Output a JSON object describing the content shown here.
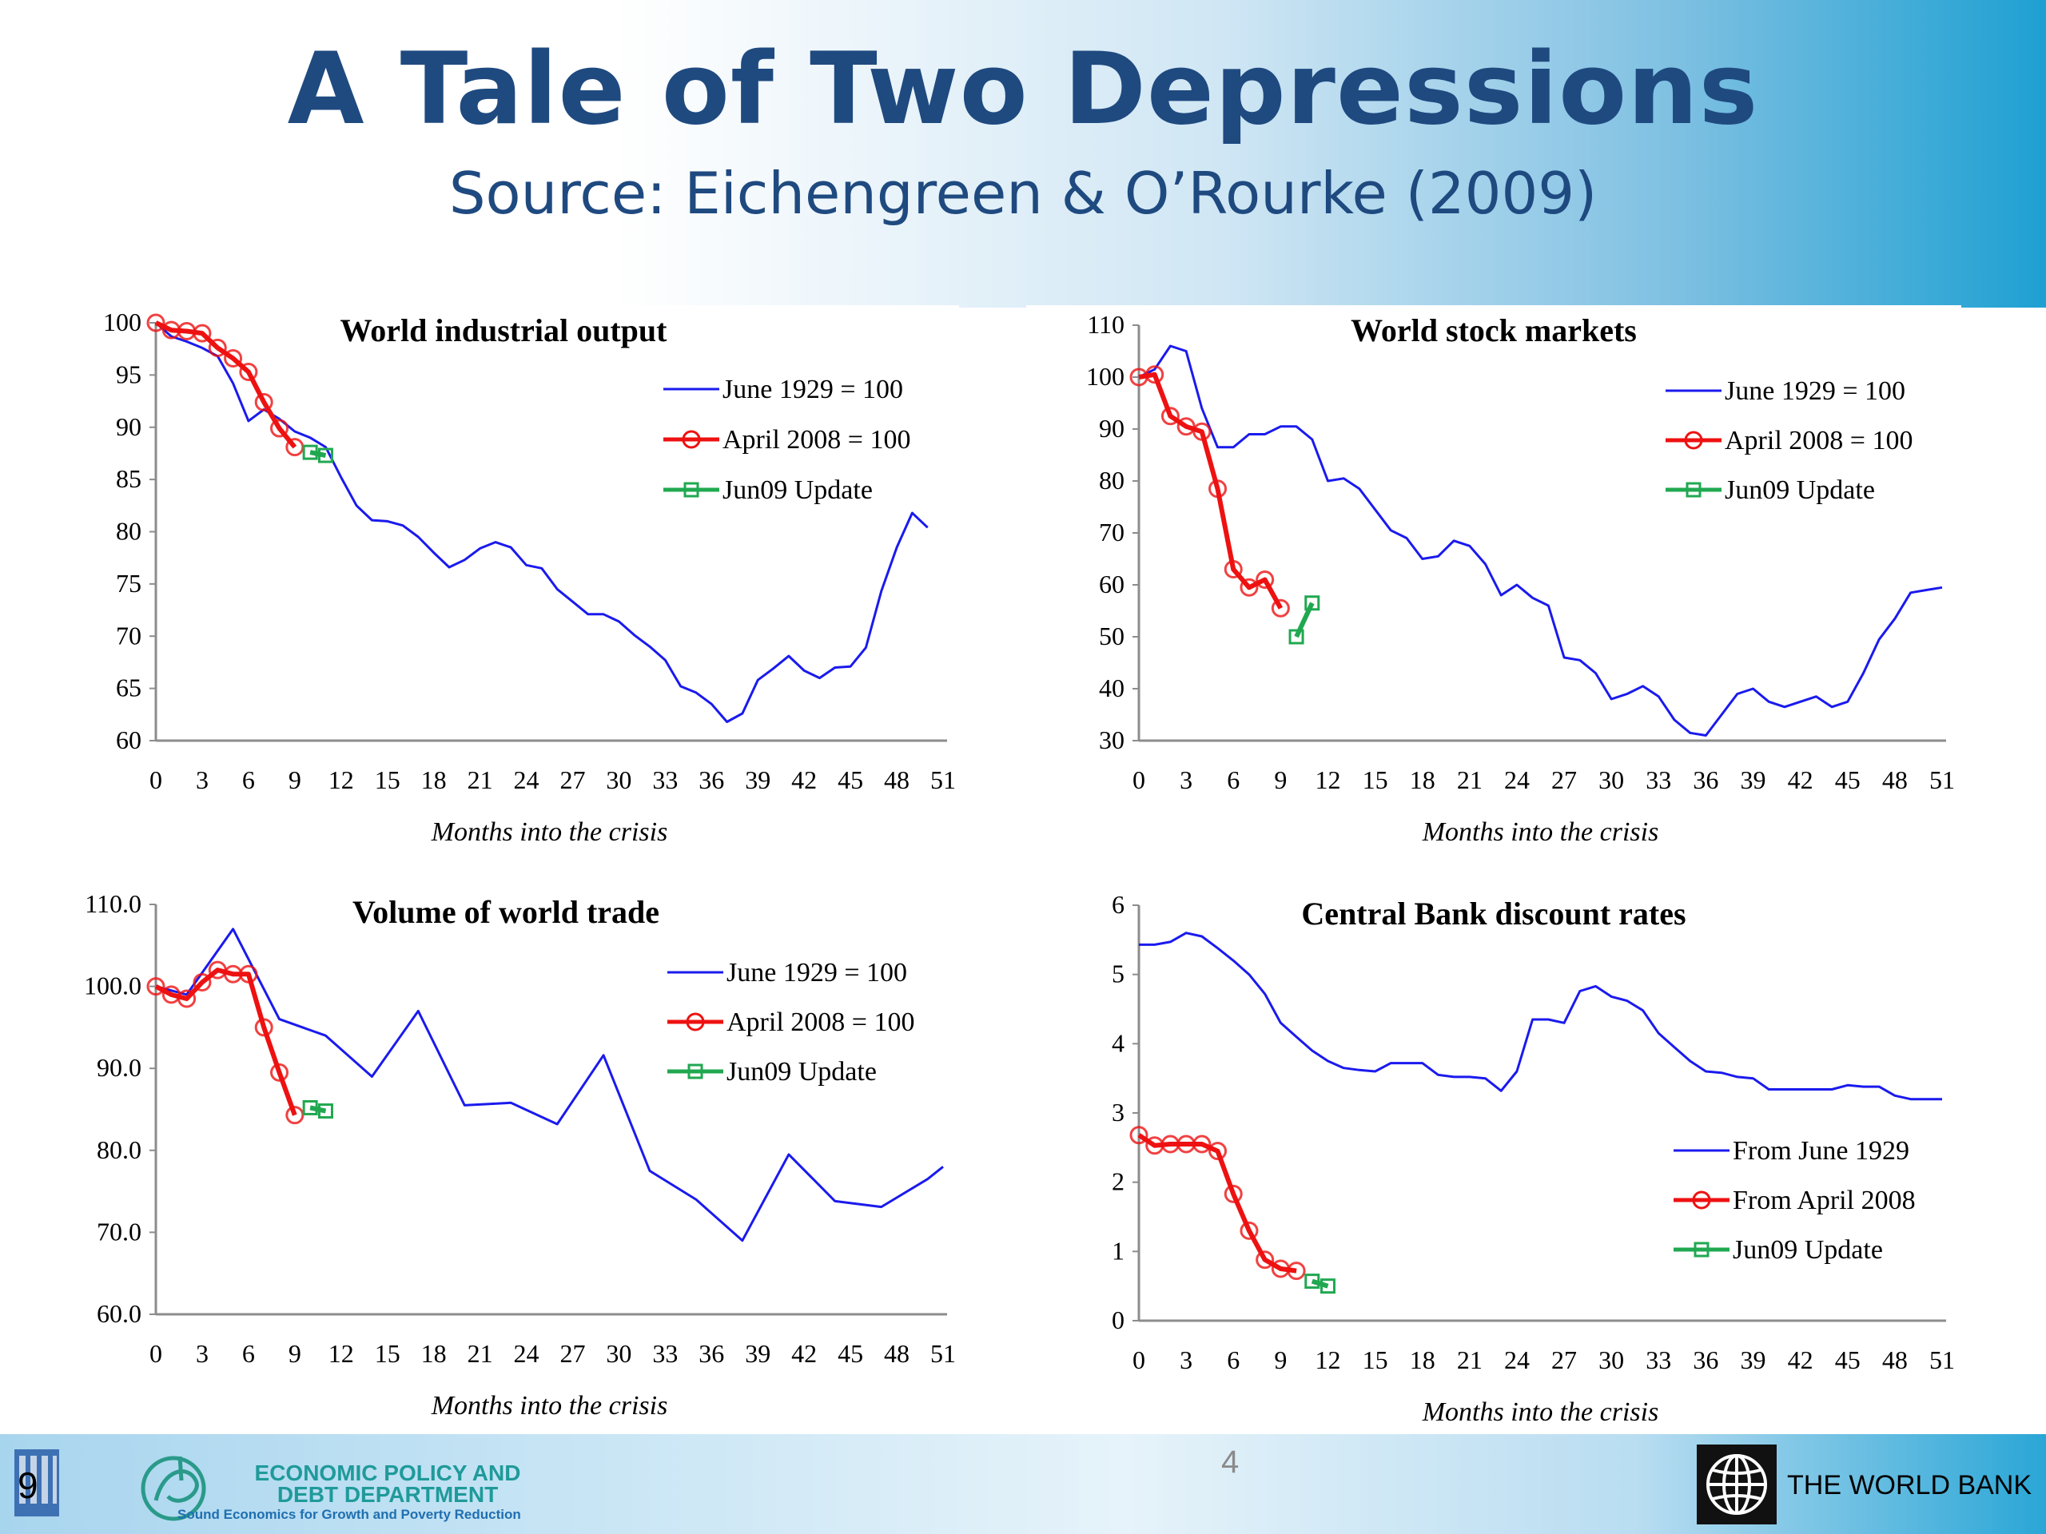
{
  "slide": {
    "title": "A Tale of Two Depressions",
    "subtitle": "Source: Eichengreen & O’Rourke (2009)"
  },
  "footer": {
    "slide_number": "9",
    "org_name": "ECONOMIC POLICY AND DEBT DEPARTMENT",
    "tagline": "Sound Economics for Growth and Poverty Reduction",
    "page_number": "4",
    "world_bank": "THE WORLD BANK"
  },
  "colors": {
    "series_1929": "#1a1aee",
    "series_2008": "#ee1111",
    "series_update": "#20a850",
    "title_blue": "#1f4a80"
  },
  "chart_data": [
    {
      "type": "line",
      "title": "World industrial output",
      "xlabel": "Months into the crisis",
      "ylabel": "",
      "xlim": [
        0,
        51
      ],
      "ylim": [
        60,
        100
      ],
      "x_ticks": [
        0,
        3,
        6,
        9,
        12,
        15,
        18,
        21,
        24,
        27,
        30,
        33,
        36,
        39,
        42,
        45,
        48,
        51
      ],
      "y_ticks": [
        60,
        65,
        70,
        75,
        80,
        85,
        90,
        95,
        100
      ],
      "y_tick_labels": [
        "60",
        "65",
        "70",
        "75",
        "80",
        "85",
        "90",
        "95",
        "100"
      ],
      "grid": false,
      "legend_position": "top-right",
      "series": [
        {
          "name": "June 1929 = 100",
          "color": "#1a1aee",
          "marker": "none",
          "x": [
            0,
            1,
            2,
            3,
            4,
            5,
            6,
            7,
            8,
            9,
            10,
            11,
            12,
            13,
            14,
            15,
            16,
            17,
            18,
            19,
            20,
            21,
            22,
            23,
            24,
            25,
            26,
            27,
            28,
            29,
            30,
            31,
            32,
            33,
            34,
            35,
            36,
            37,
            38,
            39,
            40,
            41,
            42,
            43,
            44,
            45,
            46,
            47,
            48,
            49,
            50
          ],
          "y": [
            100,
            98.7,
            98.2,
            97.6,
            96.8,
            94.2,
            90.6,
            91.7,
            90.8,
            89.6,
            89.0,
            88.1,
            85.2,
            82.5,
            81.1,
            81.0,
            80.6,
            79.5,
            78.0,
            76.6,
            77.3,
            78.4,
            79.0,
            78.5,
            76.8,
            76.5,
            74.5,
            73.3,
            72.1,
            72.1,
            71.4,
            70.1,
            69.0,
            67.7,
            65.2,
            64.6,
            63.5,
            61.8,
            62.6,
            65.8,
            66.9,
            68.1,
            66.7,
            66.0,
            67.0,
            67.1,
            68.9,
            74.3,
            78.5,
            81.8,
            80.4
          ]
        },
        {
          "name": "April 2008 = 100",
          "color": "#ee1111",
          "marker": "circle",
          "x": [
            0,
            1,
            2,
            3,
            4,
            5,
            6,
            7,
            8,
            9
          ],
          "y": [
            100,
            99.3,
            99.2,
            99.0,
            97.6,
            96.6,
            95.3,
            92.4,
            89.9,
            88.1
          ]
        },
        {
          "name": "Jun09 Update",
          "color": "#20a850",
          "marker": "square",
          "x": [
            10,
            11
          ],
          "y": [
            87.6,
            87.3
          ]
        }
      ]
    },
    {
      "type": "line",
      "title": "World stock markets",
      "xlabel": "Months into the crisis",
      "ylabel": "",
      "xlim": [
        0,
        51
      ],
      "ylim": [
        30,
        110
      ],
      "x_ticks": [
        0,
        3,
        6,
        9,
        12,
        15,
        18,
        21,
        24,
        27,
        30,
        33,
        36,
        39,
        42,
        45,
        48,
        51
      ],
      "y_ticks": [
        30,
        40,
        50,
        60,
        70,
        80,
        90,
        100,
        110
      ],
      "y_tick_labels": [
        "30",
        "40",
        "50",
        "60",
        "70",
        "80",
        "90",
        "100",
        "110"
      ],
      "grid": false,
      "legend_position": "top-right",
      "series": [
        {
          "name": "June 1929 = 100",
          "color": "#1a1aee",
          "marker": "none",
          "x": [
            0,
            1,
            2,
            3,
            4,
            5,
            6,
            7,
            8,
            9,
            10,
            11,
            12,
            13,
            14,
            15,
            16,
            17,
            18,
            19,
            20,
            21,
            22,
            23,
            24,
            25,
            26,
            27,
            28,
            29,
            30,
            31,
            32,
            33,
            34,
            35,
            36,
            37,
            38,
            39,
            40,
            41,
            42,
            43,
            44,
            45,
            46,
            47,
            48,
            49,
            50,
            51
          ],
          "y": [
            100,
            101.5,
            106,
            105,
            94,
            86.5,
            86.5,
            89,
            89,
            90.5,
            90.5,
            88,
            80,
            80.5,
            78.5,
            74.5,
            70.5,
            69,
            65,
            65.5,
            68.5,
            67.5,
            64,
            58,
            60,
            57.5,
            56,
            46,
            45.5,
            43,
            38,
            39,
            40.5,
            38.5,
            34,
            31.5,
            31,
            35,
            39,
            40,
            37.5,
            36.5,
            37.5,
            38.5,
            36.5,
            37.5,
            43,
            49.5,
            53.5,
            58.5,
            59,
            59.5
          ]
        },
        {
          "name": "April 2008 = 100",
          "color": "#ee1111",
          "marker": "circle",
          "x": [
            0,
            1,
            2,
            3,
            4,
            5,
            6,
            7,
            8,
            9
          ],
          "y": [
            100,
            100.5,
            92.5,
            90.5,
            89.5,
            78.5,
            63,
            59.5,
            61,
            55.5
          ]
        },
        {
          "name": "Jun09 Update",
          "color": "#20a850",
          "marker": "square",
          "x": [
            10,
            11
          ],
          "y": [
            50,
            56.5
          ]
        }
      ]
    },
    {
      "type": "line",
      "title": "Volume of world trade",
      "xlabel": "Months into the crisis",
      "ylabel": "",
      "xlim": [
        0,
        51
      ],
      "ylim": [
        60,
        110
      ],
      "x_ticks": [
        0,
        3,
        6,
        9,
        12,
        15,
        18,
        21,
        24,
        27,
        30,
        33,
        36,
        39,
        42,
        45,
        48,
        51
      ],
      "y_ticks": [
        60,
        70,
        80,
        90,
        100,
        110
      ],
      "y_tick_labels": [
        "60.0",
        "70.0",
        "80.0",
        "90.0",
        "100.0",
        "110.0"
      ],
      "grid": false,
      "legend_position": "top-right",
      "series": [
        {
          "name": "June 1929 = 100",
          "color": "#1a1aee",
          "marker": "none",
          "x": [
            0,
            2,
            5,
            8,
            11,
            14,
            17,
            20,
            23,
            26,
            29,
            32,
            35,
            38,
            41,
            44,
            47,
            50,
            51
          ],
          "y": [
            100,
            99,
            107,
            96,
            94,
            89,
            97,
            85.5,
            85.8,
            83.2,
            91.6,
            77.5,
            74,
            69,
            79.5,
            73.8,
            73.1,
            76.5,
            78
          ]
        },
        {
          "name": "April 2008 = 100",
          "color": "#ee1111",
          "marker": "circle",
          "x": [
            0,
            1,
            2,
            3,
            4,
            5,
            6,
            7,
            8,
            9
          ],
          "y": [
            100,
            99,
            98.5,
            100.5,
            102,
            101.5,
            101.5,
            95,
            89.5,
            84.3
          ]
        },
        {
          "name": "Jun09 Update",
          "color": "#20a850",
          "marker": "square",
          "x": [
            10,
            11
          ],
          "y": [
            85.2,
            84.8
          ]
        }
      ]
    },
    {
      "type": "line",
      "title": "Central Bank discount rates",
      "xlabel": "Months into the crisis",
      "ylabel": "",
      "xlim": [
        0,
        51
      ],
      "ylim": [
        0,
        6
      ],
      "x_ticks": [
        0,
        3,
        6,
        9,
        12,
        15,
        18,
        21,
        24,
        27,
        30,
        33,
        36,
        39,
        42,
        45,
        48,
        51
      ],
      "y_ticks": [
        0,
        1,
        2,
        3,
        4,
        5,
        6
      ],
      "y_tick_labels": [
        "0",
        "1",
        "2",
        "3",
        "4",
        "5",
        "6"
      ],
      "grid": false,
      "legend_position": "bottom-right",
      "series": [
        {
          "name": "From June 1929",
          "color": "#1a1aee",
          "marker": "none",
          "x": [
            0,
            1,
            2,
            3,
            4,
            5,
            6,
            7,
            8,
            9,
            10,
            11,
            12,
            13,
            14,
            15,
            16,
            17,
            18,
            19,
            20,
            21,
            22,
            23,
            24,
            25,
            26,
            27,
            28,
            29,
            30,
            31,
            32,
            33,
            34,
            35,
            36,
            37,
            38,
            39,
            40,
            41,
            42,
            43,
            44,
            45,
            46,
            47,
            48,
            49,
            50,
            51
          ],
          "y": [
            5.43,
            5.43,
            5.47,
            5.6,
            5.55,
            5.38,
            5.2,
            5.0,
            4.72,
            4.3,
            4.1,
            3.9,
            3.75,
            3.65,
            3.62,
            3.6,
            3.72,
            3.72,
            3.72,
            3.55,
            3.52,
            3.52,
            3.5,
            3.32,
            3.6,
            4.35,
            4.35,
            4.3,
            4.76,
            4.83,
            4.68,
            4.62,
            4.48,
            4.15,
            3.95,
            3.75,
            3.6,
            3.58,
            3.52,
            3.5,
            3.34,
            3.34,
            3.34,
            3.34,
            3.34,
            3.4,
            3.38,
            3.38,
            3.25,
            3.2,
            3.2,
            3.2
          ]
        },
        {
          "name": "From April 2008",
          "color": "#ee1111",
          "marker": "circle",
          "x": [
            0,
            1,
            2,
            3,
            4,
            5,
            6,
            7,
            8,
            9,
            10
          ],
          "y": [
            2.68,
            2.53,
            2.55,
            2.55,
            2.55,
            2.45,
            1.83,
            1.3,
            0.88,
            0.75,
            0.72
          ]
        },
        {
          "name": "Jun09 Update",
          "color": "#20a850",
          "marker": "square",
          "x": [
            11,
            12
          ],
          "y": [
            0.57,
            0.5
          ]
        }
      ]
    }
  ]
}
